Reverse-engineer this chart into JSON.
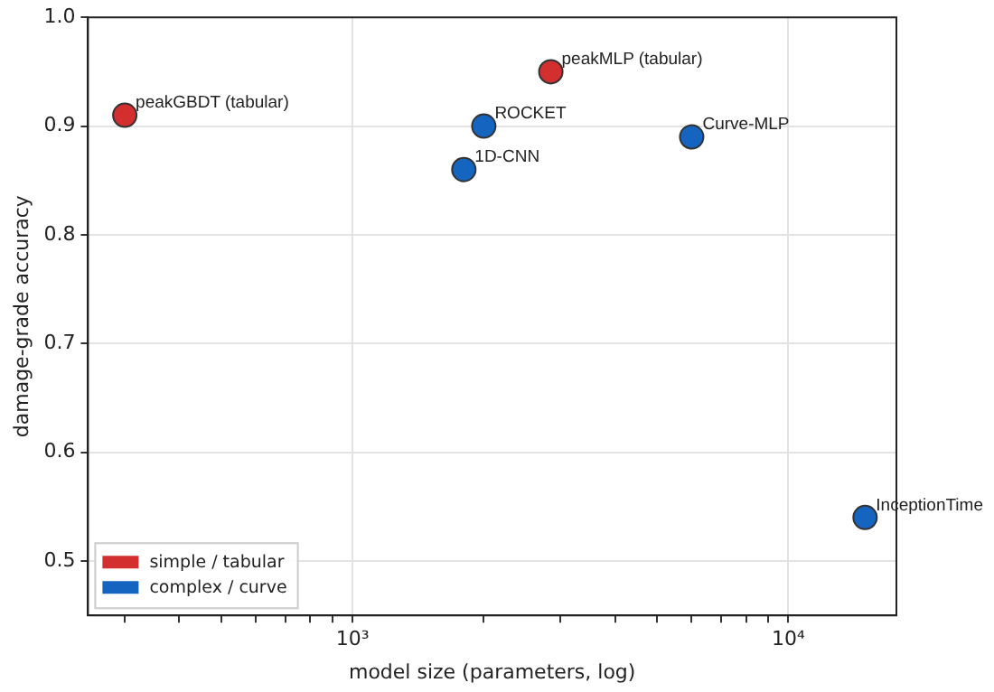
{
  "chart_data": {
    "type": "scatter",
    "xlabel": "model size (parameters, log)",
    "ylabel": "damage-grade accuracy",
    "log": "x",
    "xlim": [
      247,
      17700
    ],
    "ylim": [
      0.45,
      1.0
    ],
    "xticks": [
      {
        "value": 300,
        "label": null
      },
      {
        "value": 400,
        "label": null
      },
      {
        "value": 500,
        "label": null
      },
      {
        "value": 600,
        "label": null
      },
      {
        "value": 700,
        "label": null
      },
      {
        "value": 800,
        "label": null
      },
      {
        "value": 900,
        "label": null
      },
      {
        "value": 1000,
        "label": "10³"
      },
      {
        "value": 2000,
        "label": null
      },
      {
        "value": 3000,
        "label": null
      },
      {
        "value": 4000,
        "label": null
      },
      {
        "value": 5000,
        "label": null
      },
      {
        "value": 6000,
        "label": null
      },
      {
        "value": 7000,
        "label": null
      },
      {
        "value": 8000,
        "label": null
      },
      {
        "value": 9000,
        "label": null
      },
      {
        "value": 10000,
        "label": "10⁴"
      }
    ],
    "yticks": [
      0.5,
      0.6,
      0.7,
      0.8,
      0.9,
      {
        "value": 1.0,
        "label": "1.0"
      }
    ],
    "grid": true,
    "legend": "bottom left",
    "marker": "circle",
    "series": [
      {
        "name": "simple / tabular",
        "color": "#d32f2f",
        "x": [
          300,
          2850
        ],
        "values": [
          0.91,
          0.95
        ]
      },
      {
        "name": "complex / curve",
        "color": "#1565c0",
        "x": [
          2000,
          1800,
          6000,
          15000
        ],
        "values": [
          0.9,
          0.86,
          0.89,
          0.54
        ]
      }
    ],
    "annotations": [
      {
        "text": "peakGBDT (tabular)",
        "x": 300,
        "y": 0.91
      },
      {
        "text": "peakMLP (tabular)",
        "x": 2850,
        "y": 0.95
      },
      {
        "text": "ROCKET",
        "x": 2000,
        "y": 0.9
      },
      {
        "text": "1D-CNN",
        "x": 1800,
        "y": 0.86
      },
      {
        "text": "Curve-MLP",
        "x": 6000,
        "y": 0.89
      },
      {
        "text": "InceptionTime",
        "x": 15000,
        "y": 0.54
      }
    ]
  }
}
